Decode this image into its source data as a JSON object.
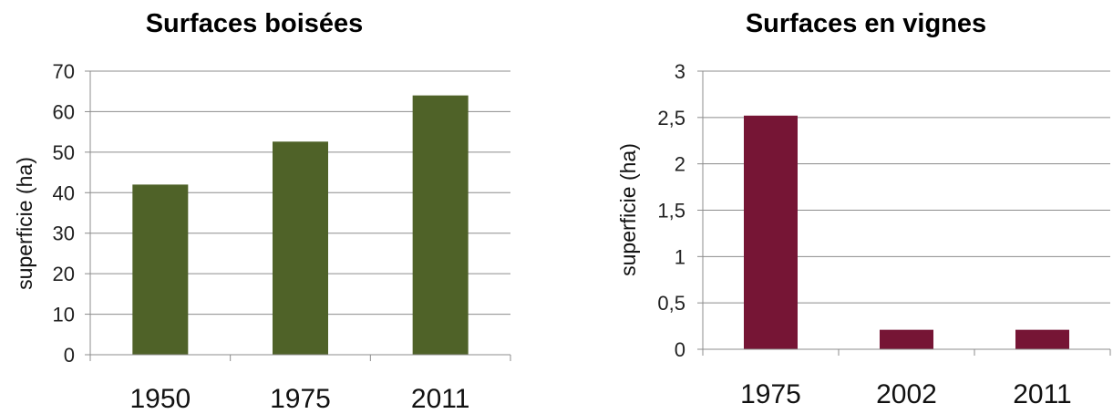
{
  "chart_data": [
    {
      "type": "bar",
      "title": "Surfaces boisées",
      "xlabel": "",
      "ylabel": "superficie (ha)",
      "categories": [
        "1950",
        "1975",
        "2011"
      ],
      "values": [
        42,
        52.6,
        64
      ],
      "ylim": [
        0,
        70
      ],
      "ytick_values": [
        0,
        10,
        20,
        30,
        40,
        50,
        60,
        70
      ],
      "ytick_labels": [
        "0",
        "10",
        "20",
        "30",
        "40",
        "50",
        "60",
        "70"
      ],
      "grid": true,
      "legend": "none",
      "bar_color": "#4f6228"
    },
    {
      "type": "bar",
      "title": "Surfaces en vignes",
      "xlabel": "",
      "ylabel": "superficie (ha)",
      "categories": [
        "1975",
        "2002",
        "2011"
      ],
      "values": [
        2.52,
        0.21,
        0.21
      ],
      "ylim": [
        0,
        3
      ],
      "ytick_values": [
        0,
        0.5,
        1,
        1.5,
        2,
        2.5,
        3
      ],
      "ytick_labels": [
        "0",
        "0,5",
        "1",
        "1,5",
        "2",
        "2,5",
        "3"
      ],
      "grid": true,
      "legend": "none",
      "bar_color": "#761535"
    }
  ]
}
